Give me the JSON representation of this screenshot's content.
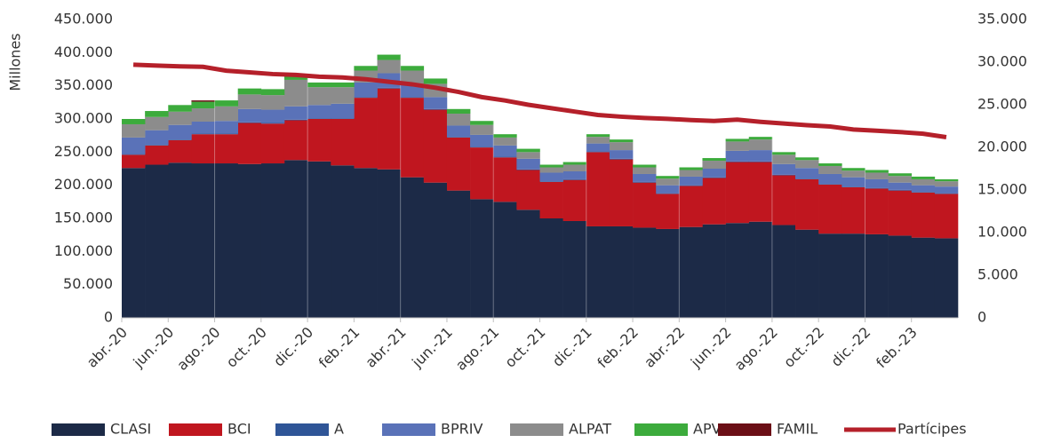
{
  "chart_data": {
    "type": "stacked-bar-line",
    "y_label": "Millones",
    "categories": [
      "abr.-20",
      null,
      "jun.-20",
      null,
      "ago.-20",
      null,
      "oct.-20",
      null,
      "dic.-20",
      null,
      "feb.-21",
      null,
      "abr.-21",
      null,
      "jun.-21",
      null,
      "ago.-21",
      null,
      "oct.-21",
      null,
      "dic.-21",
      null,
      "feb.-22",
      null,
      "abr.-22",
      null,
      "jun.-22",
      null,
      "ago.-22",
      null,
      "oct.-22",
      null,
      "dic.-22",
      null,
      "feb.-23",
      null
    ],
    "series": [
      {
        "name": "CLASI",
        "color": "#1c2a47",
        "values": [
          226000,
          231000,
          234000,
          233000,
          233000,
          232000,
          233000,
          238000,
          236000,
          230000,
          226000,
          224000,
          212000,
          204000,
          192000,
          179000,
          175000,
          163000,
          150000,
          146000,
          138000,
          138000,
          136000,
          134000,
          137000,
          141000,
          143000,
          145000,
          140000,
          133000,
          127000,
          127000,
          126000,
          124000,
          121000,
          120000
        ]
      },
      {
        "name": "BCI",
        "color": "#c0161f",
        "values": [
          20000,
          29000,
          34000,
          44000,
          44000,
          62000,
          60000,
          60000,
          64000,
          70000,
          106000,
          122000,
          120000,
          110000,
          80000,
          78000,
          67000,
          60000,
          55000,
          62000,
          112000,
          101000,
          68000,
          53000,
          62000,
          70000,
          92000,
          90000,
          75000,
          76000,
          74000,
          70000,
          69000,
          68000,
          68000,
          67000
        ]
      },
      {
        "name": "A",
        "color": "#2f5597",
        "values": [
          1000,
          1000,
          1000,
          1000,
          1000,
          1000,
          1000,
          1000,
          1000,
          1000,
          1000,
          1000,
          1000,
          1000,
          1000,
          1000,
          1000,
          1000,
          1000,
          1000,
          1000,
          1000,
          1000,
          1000,
          1000,
          1000,
          1000,
          1000,
          1000,
          1000,
          1000,
          1000,
          1000,
          1000,
          1000,
          1000
        ]
      },
      {
        "name": "BPRIV",
        "color": "#5a72b8",
        "values": [
          25000,
          22000,
          22000,
          18000,
          19000,
          20000,
          20000,
          20000,
          20000,
          22000,
          22000,
          22000,
          18000,
          18000,
          17000,
          18000,
          17000,
          16000,
          13000,
          12000,
          12000,
          13000,
          12000,
          12000,
          13000,
          13000,
          16000,
          17000,
          16000,
          16000,
          15000,
          14000,
          13000,
          11000,
          10000,
          10000
        ]
      },
      {
        "name": "ALPAT",
        "color": "#8c8c8c",
        "values": [
          20000,
          20000,
          20000,
          20000,
          22000,
          22000,
          22000,
          40000,
          27000,
          25000,
          18000,
          20000,
          22000,
          20000,
          18000,
          15000,
          12000,
          10000,
          8000,
          10000,
          10000,
          12000,
          10000,
          10000,
          10000,
          12000,
          14000,
          16000,
          14000,
          12000,
          12000,
          10000,
          10000,
          10000,
          9000,
          8000
        ]
      },
      {
        "name": "APV",
        "color": "#3cab3c",
        "values": [
          8000,
          9000,
          10000,
          10000,
          9000,
          9000,
          9000,
          7000,
          7000,
          7000,
          7000,
          8000,
          7000,
          8000,
          7000,
          6000,
          5000,
          5000,
          4000,
          4000,
          4000,
          4000,
          4000,
          4000,
          4000,
          4000,
          4000,
          4000,
          4000,
          4000,
          4000,
          4000,
          4000,
          4000,
          4000,
          3000
        ]
      },
      {
        "name": "FAMIL",
        "color": "#6b0f16",
        "values": [
          0,
          0,
          0,
          2000,
          0,
          0,
          0,
          0,
          0,
          0,
          0,
          0,
          0,
          0,
          0,
          0,
          0,
          0,
          0,
          0,
          0,
          0,
          0,
          0,
          0,
          0,
          0,
          0,
          0,
          0,
          0,
          0,
          0,
          0,
          0,
          0
        ]
      },
      {
        "name": "Partícipes",
        "color": "#b5202a",
        "axis": "y2",
        "values": [
          29700,
          29600,
          29500,
          29450,
          29000,
          28800,
          28600,
          28500,
          28300,
          28200,
          28000,
          27700,
          27400,
          27000,
          26500,
          25900,
          25500,
          25000,
          24600,
          24200,
          23800,
          23600,
          23450,
          23350,
          23200,
          23100,
          23250,
          23000,
          22800,
          22600,
          22450,
          22100,
          21950,
          21800,
          21600,
          21200
        ]
      }
    ],
    "ylim": [
      0,
      450000
    ],
    "yticks": [
      0,
      {
        "value": 50000,
        "label": "50.000"
      },
      {
        "value": 100000,
        "label": "100.000"
      },
      {
        "value": 150000,
        "label": "150.000"
      },
      {
        "value": 200000,
        "label": "200.000"
      },
      {
        "value": 250000,
        "label": "250.000"
      },
      {
        "value": 300000,
        "label": "300.000"
      },
      {
        "value": 350000,
        "label": "350.000"
      },
      {
        "value": 400000,
        "label": "400.000"
      },
      {
        "value": 450000,
        "label": "450.000"
      }
    ],
    "y2lim": [
      0,
      35000
    ],
    "y2ticks": [
      0,
      {
        "value": 5000,
        "label": "5.000"
      },
      {
        "value": 10000,
        "label": "10.000"
      },
      {
        "value": 15000,
        "label": "15.000"
      },
      {
        "value": 20000,
        "label": "20.000"
      },
      {
        "value": 25000,
        "label": "25.000"
      },
      {
        "value": 30000,
        "label": "30.000"
      },
      {
        "value": 35000,
        "label": "35.000"
      }
    ],
    "legend": "bottom"
  }
}
